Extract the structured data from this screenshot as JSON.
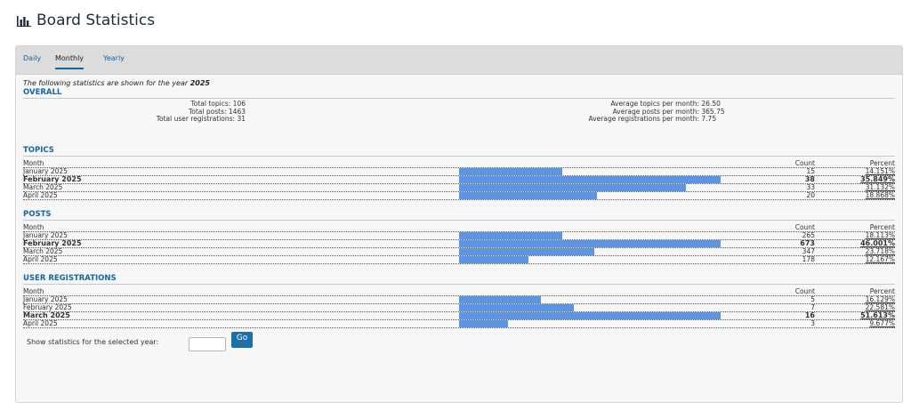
{
  "page": {
    "title": "Board Statistics"
  },
  "tabs": [
    {
      "label": "Daily",
      "active": false
    },
    {
      "label": "Monthly",
      "active": true
    },
    {
      "label": "Yearly",
      "active": false
    }
  ],
  "intro": {
    "prefix": "The following statistics are shown for the year ",
    "year": "2025"
  },
  "overall": {
    "heading": "OVERALL",
    "left": [
      {
        "label": "Total topics:",
        "value": "106"
      },
      {
        "label": "Total posts:",
        "value": "1463"
      },
      {
        "label": "Total user registrations:",
        "value": "31"
      }
    ],
    "right": [
      {
        "label": "Average topics per month:",
        "value": "26.50"
      },
      {
        "label": "Average posts per month:",
        "value": "365.75"
      },
      {
        "label": "Average registrations per month:",
        "value": "7.75"
      }
    ]
  },
  "columns": {
    "month": "Month",
    "count": "Count",
    "percent": "Percent"
  },
  "sections": [
    {
      "heading": "TOPICS",
      "rows": [
        {
          "month": "January 2025",
          "count": "15",
          "percent": "14.151%",
          "fraction": 0.3947,
          "bold": false
        },
        {
          "month": "February 2025",
          "count": "38",
          "percent": "35.849%",
          "fraction": 1.0,
          "bold": true
        },
        {
          "month": "March 2025",
          "count": "33",
          "percent": "31.132%",
          "fraction": 0.8684,
          "bold": false
        },
        {
          "month": "April 2025",
          "count": "20",
          "percent": "18.868%",
          "fraction": 0.5263,
          "bold": false
        }
      ]
    },
    {
      "heading": "POSTS",
      "rows": [
        {
          "month": "January 2025",
          "count": "265",
          "percent": "18.113%",
          "fraction": 0.3938,
          "bold": false
        },
        {
          "month": "February 2025",
          "count": "673",
          "percent": "46.001%",
          "fraction": 1.0,
          "bold": true
        },
        {
          "month": "March 2025",
          "count": "347",
          "percent": "23.718%",
          "fraction": 0.5156,
          "bold": false
        },
        {
          "month": "April 2025",
          "count": "178",
          "percent": "12.167%",
          "fraction": 0.2645,
          "bold": false
        }
      ]
    },
    {
      "heading": "USER REGISTRATIONS",
      "rows": [
        {
          "month": "January 2025",
          "count": "5",
          "percent": "16.129%",
          "fraction": 0.3125,
          "bold": false
        },
        {
          "month": "February 2025",
          "count": "7",
          "percent": "22.581%",
          "fraction": 0.4375,
          "bold": false
        },
        {
          "month": "March 2025",
          "count": "16",
          "percent": "51.613%",
          "fraction": 1.0,
          "bold": true
        },
        {
          "month": "April 2025",
          "count": "3",
          "percent": "9.677%",
          "fraction": 0.1875,
          "bold": false
        }
      ]
    }
  ],
  "footer": {
    "label": "Show statistics for the selected year:",
    "go_label": "Go"
  },
  "colors": {
    "bar": "#5d95e6",
    "accent": "#1565a0",
    "button": "#1e6ea8"
  }
}
